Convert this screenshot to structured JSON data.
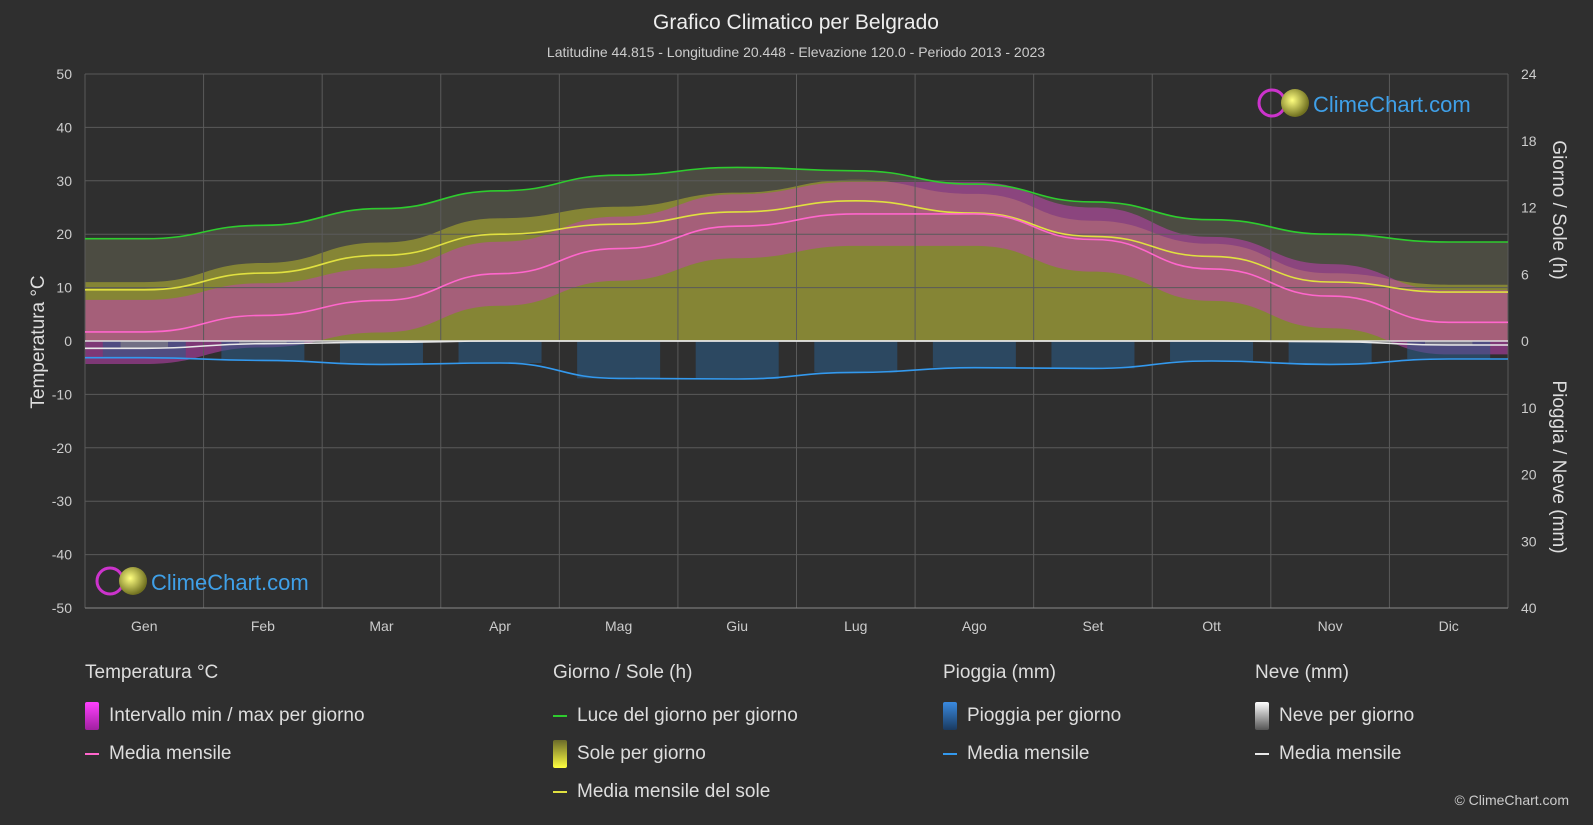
{
  "chart_data": {
    "type": "line",
    "title": "Grafico Climatico per Belgrado",
    "subtitle": "Latitudine 44.815 - Longitudine 20.448 - Elevazione 120.0 - Periodo 2013 - 2023",
    "xlabel": "",
    "ylabel_left": "Temperatura °C",
    "ylabel_right_top": "Giorno / Sole (h)",
    "ylabel_right_bottom": "Pioggia / Neve (mm)",
    "categories": [
      "Gen",
      "Feb",
      "Mar",
      "Apr",
      "Mag",
      "Giu",
      "Lug",
      "Ago",
      "Set",
      "Ott",
      "Nov",
      "Dic"
    ],
    "left_axis": {
      "range": [
        -50,
        50
      ],
      "ticks": [
        "50",
        "40",
        "30",
        "20",
        "10",
        "0",
        "-10",
        "-20",
        "-30",
        "-40",
        "-50"
      ]
    },
    "right_axis_top": {
      "unit": "h",
      "range": [
        0,
        24
      ],
      "ticks": [
        "24",
        "18",
        "12",
        "6",
        "0"
      ]
    },
    "right_axis_bottom": {
      "unit": "mm",
      "range": [
        0,
        40
      ],
      "ticks": [
        "10",
        "20",
        "30",
        "40"
      ]
    },
    "grid": true,
    "series": [
      {
        "name": "Luce del giorno per giorno",
        "axis": "hours",
        "color": "#2ecc2e",
        "values": [
          9.2,
          10.4,
          11.9,
          13.5,
          14.9,
          15.6,
          15.3,
          14.1,
          12.5,
          10.9,
          9.6,
          8.9
        ]
      },
      {
        "name": "Media mensile del sole",
        "axis": "hours",
        "color": "#e0e040",
        "values": [
          4.6,
          6.1,
          7.7,
          9.6,
          10.5,
          11.6,
          12.6,
          11.5,
          9.4,
          7.6,
          5.3,
          4.4
        ]
      },
      {
        "name": "Media mensile",
        "group": "Temperatura °C",
        "axis": "temperature",
        "color": "#ff66cc",
        "values": [
          1.7,
          4.8,
          7.6,
          12.6,
          17.3,
          21.5,
          23.8,
          23.8,
          19.0,
          13.5,
          8.4,
          3.5
        ]
      },
      {
        "name": "Media mensile",
        "group": "Pioggia (mm)",
        "axis": "precipitation",
        "color": "#3399ee",
        "values": [
          2.5,
          2.9,
          3.5,
          3.3,
          5.6,
          5.7,
          4.7,
          4.0,
          4.1,
          3.0,
          3.5,
          2.7
        ]
      },
      {
        "name": "Media mensile",
        "group": "Neve (mm)",
        "axis": "precipitation",
        "color": "#e8e8e8",
        "values": [
          1.1,
          0.4,
          0.2,
          0,
          0,
          0,
          0,
          0,
          0,
          0,
          0.1,
          0.6
        ]
      }
    ],
    "colors": {
      "background": "#2f2f2f",
      "temp_range": "#e040e0",
      "sunshine_band": "#a8a830",
      "daylight_band": "#555540",
      "rain_bars": "#2a6aa0",
      "snow_bars": "#888888"
    }
  },
  "watermark": "ClimeChart.com",
  "copyright": "© ClimeChart.com",
  "legend": {
    "temperature": {
      "title": "Temperatura °C",
      "items": [
        "Intervallo min / max per giorno",
        "Media mensile"
      ]
    },
    "sun": {
      "title": "Giorno / Sole (h)",
      "items": [
        "Luce del giorno per giorno",
        "Sole per giorno",
        "Media mensile del sole"
      ]
    },
    "rain": {
      "title": "Pioggia (mm)",
      "items": [
        "Pioggia per giorno",
        "Media mensile"
      ]
    },
    "snow": {
      "title": "Neve (mm)",
      "items": [
        "Neve per giorno",
        "Media mensile"
      ]
    }
  }
}
